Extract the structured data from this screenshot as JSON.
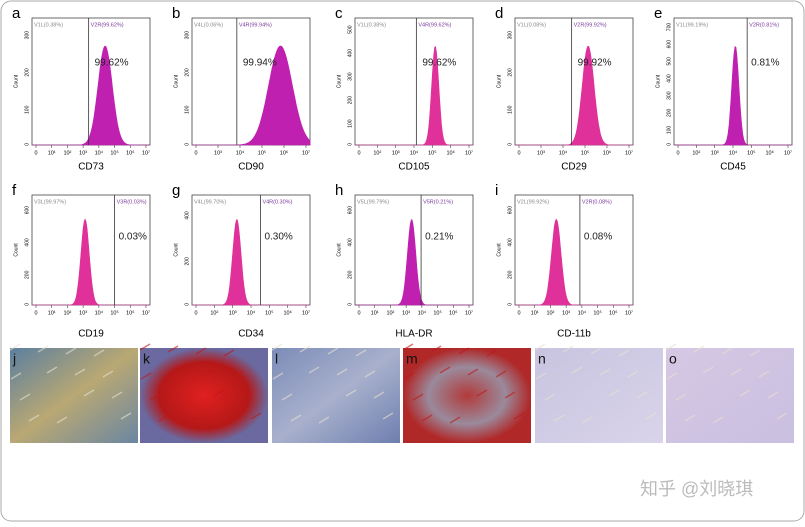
{
  "panels": [
    {
      "letter": "a",
      "xlabel": "CD73",
      "ylabel": "Count",
      "gate_left": "V1L(0.38%)",
      "gate_right": "V2R(99.62%)",
      "percent": "99.62%",
      "yticks": [
        "0",
        "100",
        "200",
        "300"
      ],
      "xticks": [
        "0",
        "10¹",
        "10²",
        "10³",
        "10⁴",
        "10⁵",
        "10⁶",
        "10⁷"
      ]
    },
    {
      "letter": "b",
      "xlabel": "CD90",
      "ylabel": "Count",
      "gate_left": "V4L(0.06%)",
      "gate_right": "V4R(99.94%)",
      "percent": "99.94%",
      "yticks": [
        "0",
        "100",
        "200",
        "300"
      ],
      "xticks": [
        "0",
        "10³",
        "10⁴",
        "10⁵",
        "10⁶",
        "10⁷"
      ]
    },
    {
      "letter": "c",
      "xlabel": "CD105",
      "ylabel": "Count",
      "gate_left": "V1L(0.38%)",
      "gate_right": "V4R(99.62%)",
      "percent": "99.62%",
      "yticks": [
        "0",
        "100",
        "200",
        "300",
        "400",
        "500"
      ],
      "xticks": [
        "0",
        "10²",
        "10³",
        "10⁴",
        "10⁵",
        "10⁶",
        "10⁷"
      ]
    },
    {
      "letter": "d",
      "xlabel": "CD29",
      "ylabel": "Count",
      "gate_left": "V1L(0.08%)",
      "gate_right": "V2R(99.92%)",
      "percent": "99.92%",
      "yticks": [
        "0",
        "100",
        "200",
        "300"
      ],
      "xticks": [
        "0",
        "10³",
        "10⁴",
        "10⁵",
        "10⁶",
        "10⁷"
      ]
    },
    {
      "letter": "e",
      "xlabel": "CD45",
      "ylabel": "Count",
      "gate_left": "V1L(99.19%)",
      "gate_right": "V2R(0.81%)",
      "percent": "0.81%",
      "yticks": [
        "0",
        "100",
        "200",
        "300",
        "400",
        "500",
        "600",
        "700"
      ],
      "xticks": [
        "0",
        "10²",
        "10³",
        "10⁴",
        "10⁵",
        "10⁶",
        "10⁷"
      ]
    },
    {
      "letter": "f",
      "xlabel": "CD19",
      "ylabel": "Count",
      "gate_left": "V3L(99.97%)",
      "gate_right": "V3R(0.03%)",
      "percent": "0.03%",
      "yticks": [
        "0",
        "200",
        "400",
        "600"
      ],
      "xticks": [
        "0",
        "10¹",
        "10²",
        "10³",
        "10⁴",
        "10⁵",
        "10⁶",
        "10⁷"
      ]
    },
    {
      "letter": "g",
      "xlabel": "CD34",
      "ylabel": "Count",
      "gate_left": "V4L(99.70%)",
      "gate_right": "V4R(0.30%)",
      "percent": "0.30%",
      "yticks": [
        "0",
        "200",
        "400"
      ],
      "xticks": [
        "0",
        "10²",
        "10³",
        "10⁴",
        "10⁵",
        "10⁶",
        "10⁷"
      ]
    },
    {
      "letter": "h",
      "xlabel": "HLA-DR",
      "ylabel": "Count",
      "gate_left": "V5L(99.79%)",
      "gate_right": "V5R(0.21%)",
      "percent": "0.21%",
      "yticks": [
        "0",
        "200",
        "400",
        "600"
      ],
      "xticks": [
        "0",
        "10¹",
        "10²",
        "10³",
        "10⁴",
        "10⁵",
        "10⁶",
        "10⁷"
      ]
    },
    {
      "letter": "i",
      "xlabel": "CD-11b",
      "ylabel": "Count",
      "gate_left": "V2L(99.92%)",
      "gate_right": "V2R(0.08%)",
      "percent": "0.08%",
      "yticks": [
        "0",
        "200",
        "400",
        "600"
      ],
      "xticks": [
        "0",
        "10¹",
        "10²",
        "10³",
        "10⁴",
        "10⁵",
        "10⁶",
        "10⁷"
      ]
    }
  ],
  "images": [
    {
      "letter": "j"
    },
    {
      "letter": "k"
    },
    {
      "letter": "l"
    },
    {
      "letter": "m"
    },
    {
      "letter": "n"
    },
    {
      "letter": "o"
    }
  ],
  "watermark": "知乎 @刘晓琪"
}
